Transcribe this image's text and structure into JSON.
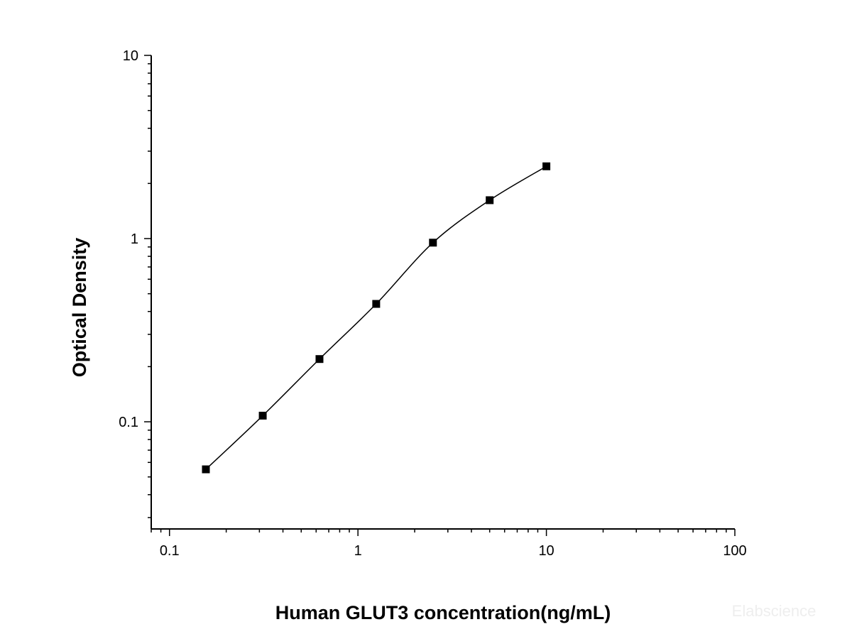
{
  "chart_data": {
    "type": "scatter",
    "title": "",
    "xlabel": "Human GLUT3 concentration(ng/mL)",
    "ylabel": "Optical Density",
    "x_scale": "log",
    "y_scale": "log",
    "xlim": [
      0.08,
      100
    ],
    "ylim": [
      0.026,
      10
    ],
    "x_ticks": [
      {
        "value": 0.1,
        "label": "0.1"
      },
      {
        "value": 1,
        "label": "1"
      },
      {
        "value": 10,
        "label": "10"
      },
      {
        "value": 100,
        "label": "100"
      }
    ],
    "y_ticks": [
      {
        "value": 0.1,
        "label": "0.1"
      },
      {
        "value": 1,
        "label": "1"
      },
      {
        "value": 10,
        "label": "10"
      }
    ],
    "grid": false,
    "legend": "none",
    "marker": "square",
    "colors": {
      "points": "#000000",
      "curve": "#000000",
      "axes": "#000000"
    },
    "fit_curve": true,
    "series": [
      {
        "x": [
          0.156,
          0.3125,
          0.625,
          1.25,
          2.5,
          5,
          10
        ],
        "y": [
          0.055,
          0.108,
          0.22,
          0.44,
          0.95,
          1.62,
          2.48
        ]
      }
    ],
    "watermark": "Elabscience"
  }
}
